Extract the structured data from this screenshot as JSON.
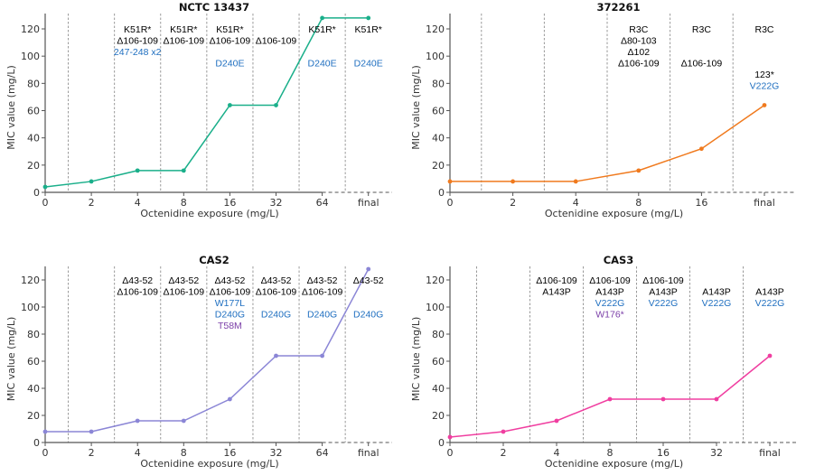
{
  "chart_data": [
    {
      "type": "line",
      "title": "NCTC 13437",
      "xlabel": "Octenidine exposure (mg/L)",
      "ylabel": "MIC value (mg/L)",
      "ylim": [
        0,
        130
      ],
      "yticks": [
        0,
        20,
        40,
        60,
        80,
        100,
        120
      ],
      "categories": [
        "0",
        "2",
        "4",
        "8",
        "16",
        "32",
        "64",
        "final"
      ],
      "values": [
        4,
        8,
        16,
        16,
        64,
        64,
        128,
        128
      ],
      "color": "#1aaf8a",
      "grid": false,
      "annotations": [
        [],
        [],
        [
          {
            "text": "K51R*",
            "color": "#000000"
          },
          {
            "text": "Δ106-109",
            "color": "#000000"
          },
          {
            "text": "247-248 x2",
            "color": "#1f6fc0"
          }
        ],
        [
          {
            "text": "K51R*",
            "color": "#000000"
          },
          {
            "text": "Δ106-109",
            "color": "#000000"
          }
        ],
        [
          {
            "text": "K51R*",
            "color": "#000000"
          },
          {
            "text": "Δ106-109",
            "color": "#000000"
          },
          {
            "text": "",
            "color": "#000000"
          },
          {
            "text": "D240E",
            "color": "#1f6fc0"
          }
        ],
        [
          {
            "text": "",
            "color": "#000000"
          },
          {
            "text": "Δ106-109",
            "color": "#000000"
          }
        ],
        [
          {
            "text": "K51R*",
            "color": "#000000"
          },
          {
            "text": "",
            "color": "#000000"
          },
          {
            "text": "",
            "color": "#000000"
          },
          {
            "text": "D240E",
            "color": "#1f6fc0"
          }
        ],
        [
          {
            "text": "K51R*",
            "color": "#000000"
          },
          {
            "text": "",
            "color": "#000000"
          },
          {
            "text": "",
            "color": "#000000"
          },
          {
            "text": "D240E",
            "color": "#1f6fc0"
          }
        ]
      ]
    },
    {
      "type": "line",
      "title": "372261",
      "xlabel": "Octenidine exposure (mg/L)",
      "ylabel": "MIC value (mg/L)",
      "ylim": [
        0,
        130
      ],
      "yticks": [
        0,
        20,
        40,
        60,
        80,
        100,
        120
      ],
      "categories": [
        "0",
        "2",
        "4",
        "8",
        "16",
        "final"
      ],
      "values": [
        8,
        8,
        8,
        16,
        32,
        64
      ],
      "color": "#f07a1e",
      "grid": false,
      "annotations": [
        [],
        [],
        [],
        [
          {
            "text": "R3C",
            "color": "#000000"
          },
          {
            "text": "Δ80-103",
            "color": "#000000"
          },
          {
            "text": "Δ102",
            "color": "#000000"
          },
          {
            "text": "Δ106-109",
            "color": "#000000"
          }
        ],
        [
          {
            "text": "R3C",
            "color": "#000000"
          },
          {
            "text": "",
            "color": "#000000"
          },
          {
            "text": "",
            "color": "#000000"
          },
          {
            "text": "Δ106-109",
            "color": "#000000"
          }
        ],
        [
          {
            "text": "R3C",
            "color": "#000000"
          },
          {
            "text": "",
            "color": "#000000"
          },
          {
            "text": "",
            "color": "#000000"
          },
          {
            "text": "",
            "color": "#000000"
          },
          {
            "text": "123*",
            "color": "#000000"
          },
          {
            "text": "V222G",
            "color": "#1f6fc0"
          }
        ]
      ]
    },
    {
      "type": "line",
      "title": "CAS2",
      "xlabel": "Octenidine exposure (mg/L)",
      "ylabel": "MIC value (mg/L)",
      "ylim": [
        0,
        130
      ],
      "yticks": [
        0,
        20,
        40,
        60,
        80,
        100,
        120
      ],
      "categories": [
        "0",
        "2",
        "4",
        "8",
        "16",
        "32",
        "64",
        "final"
      ],
      "values": [
        8,
        8,
        16,
        16,
        32,
        64,
        64,
        128
      ],
      "color": "#8b86d6",
      "grid": false,
      "annotations": [
        [],
        [],
        [
          {
            "text": "Δ43-52",
            "color": "#000000"
          },
          {
            "text": "Δ106-109",
            "color": "#000000"
          }
        ],
        [
          {
            "text": "Δ43-52",
            "color": "#000000"
          },
          {
            "text": "Δ106-109",
            "color": "#000000"
          }
        ],
        [
          {
            "text": "Δ43-52",
            "color": "#000000"
          },
          {
            "text": "Δ106-109",
            "color": "#000000"
          },
          {
            "text": "W177L",
            "color": "#1f6fc0"
          },
          {
            "text": "D240G",
            "color": "#1f6fc0"
          },
          {
            "text": "T58M",
            "color": "#7b3fa8"
          }
        ],
        [
          {
            "text": "Δ43-52",
            "color": "#000000"
          },
          {
            "text": "Δ106-109",
            "color": "#000000"
          },
          {
            "text": "",
            "color": "#000000"
          },
          {
            "text": "D240G",
            "color": "#1f6fc0"
          }
        ],
        [
          {
            "text": "Δ43-52",
            "color": "#000000"
          },
          {
            "text": "Δ106-109",
            "color": "#000000"
          },
          {
            "text": "",
            "color": "#000000"
          },
          {
            "text": "D240G",
            "color": "#1f6fc0"
          }
        ],
        [
          {
            "text": "Δ43-52",
            "color": "#000000"
          },
          {
            "text": "",
            "color": "#000000"
          },
          {
            "text": "",
            "color": "#000000"
          },
          {
            "text": "D240G",
            "color": "#1f6fc0"
          }
        ]
      ]
    },
    {
      "type": "line",
      "title": "CAS3",
      "xlabel": "Octenidine exposure (mg/L)",
      "ylabel": "MIC value (mg/L)",
      "ylim": [
        0,
        130
      ],
      "yticks": [
        0,
        20,
        40,
        60,
        80,
        100,
        120
      ],
      "categories": [
        "0",
        "2",
        "4",
        "8",
        "16",
        "32",
        "final"
      ],
      "values": [
        4,
        8,
        16,
        32,
        32,
        32,
        64
      ],
      "color": "#f03ea0",
      "grid": false,
      "annotations": [
        [],
        [],
        [
          {
            "text": "Δ106-109",
            "color": "#000000"
          },
          {
            "text": "A143P",
            "color": "#000000"
          }
        ],
        [
          {
            "text": "Δ106-109",
            "color": "#000000"
          },
          {
            "text": "A143P",
            "color": "#000000"
          },
          {
            "text": "V222G",
            "color": "#1f6fc0"
          },
          {
            "text": "W176*",
            "color": "#7b3fa8"
          }
        ],
        [
          {
            "text": "Δ106-109",
            "color": "#000000"
          },
          {
            "text": "A143P",
            "color": "#000000"
          },
          {
            "text": "V222G",
            "color": "#1f6fc0"
          }
        ],
        [
          {
            "text": "",
            "color": "#000000"
          },
          {
            "text": "A143P",
            "color": "#000000"
          },
          {
            "text": "V222G",
            "color": "#1f6fc0"
          }
        ],
        [
          {
            "text": "",
            "color": "#000000"
          },
          {
            "text": "A143P",
            "color": "#000000"
          },
          {
            "text": "V222G",
            "color": "#1f6fc0"
          }
        ]
      ]
    }
  ]
}
